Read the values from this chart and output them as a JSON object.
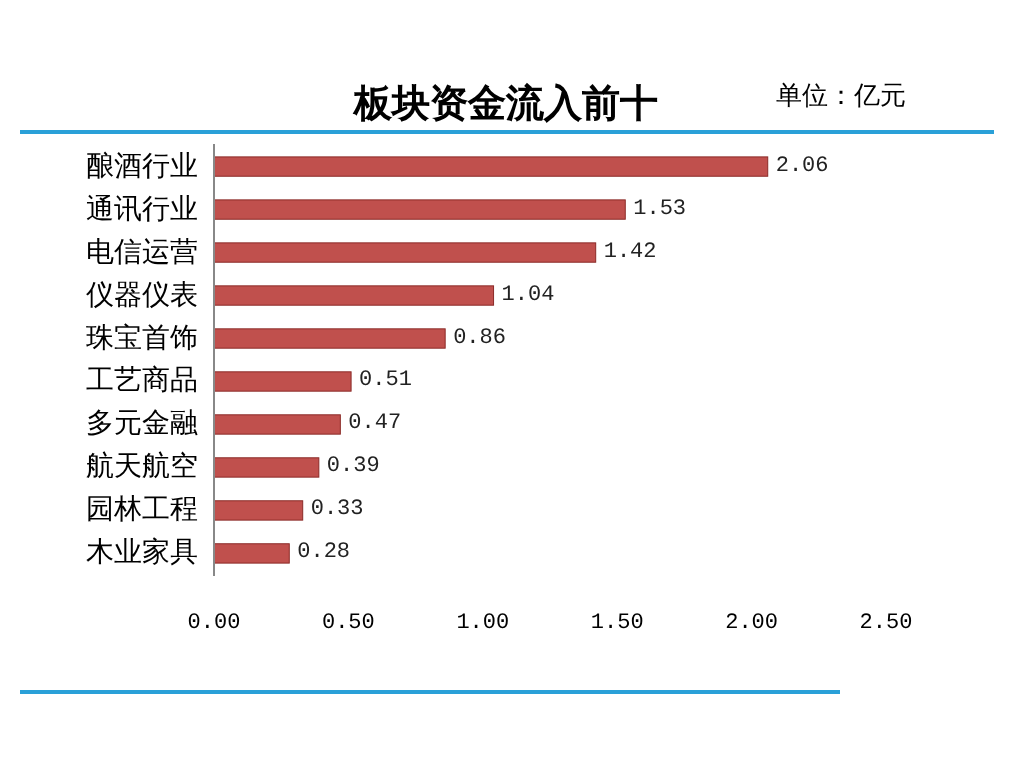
{
  "chart_data": {
    "type": "bar",
    "orientation": "horizontal",
    "title": "板块资金流入前十",
    "annotations": [
      "单位：亿元"
    ],
    "categories": [
      "酿酒行业",
      "通讯行业",
      "电信运营",
      "仪器仪表",
      "珠宝首饰",
      "工艺商品",
      "多元金融",
      "航天航空",
      "园林工程",
      "木业家具"
    ],
    "values": [
      2.06,
      1.53,
      1.42,
      1.04,
      0.86,
      0.51,
      0.47,
      0.39,
      0.33,
      0.28
    ],
    "color": "#c0504d",
    "data_labels": true,
    "xlim": [
      0,
      2.5
    ],
    "xticks": [
      {
        "value": 0,
        "label": "0.00"
      },
      {
        "value": 0.5,
        "label": "0.50"
      },
      {
        "value": 1,
        "label": "1.00"
      },
      {
        "value": 1.5,
        "label": "1.50"
      },
      {
        "value": 2,
        "label": "2.00"
      },
      {
        "value": 2.5,
        "label": "2.50"
      }
    ]
  }
}
